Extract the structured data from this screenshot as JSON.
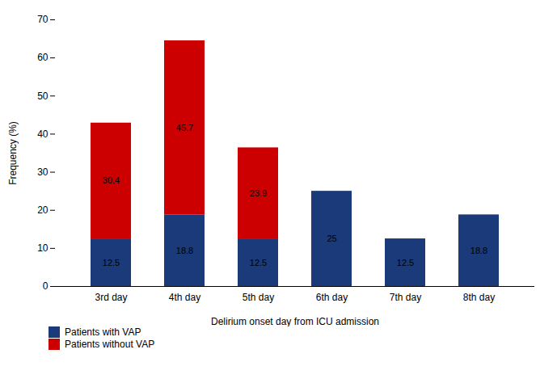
{
  "chart_data": {
    "type": "bar",
    "stacked": true,
    "categories": [
      "3rd day",
      "4th day",
      "5th day",
      "6th day",
      "7th day",
      "8th day"
    ],
    "series": [
      {
        "name": "Patients with VAP",
        "color": "#1a3a7a",
        "values": [
          12.5,
          18.8,
          12.5,
          25.0,
          12.5,
          18.8
        ],
        "value_labels": [
          "12.5",
          "18.8",
          "12.5",
          "25",
          "12.5",
          "18.8"
        ]
      },
      {
        "name": "Patients without VAP",
        "color": "#cc0000",
        "values": [
          30.4,
          45.7,
          23.9,
          0.0,
          0.0,
          0.0
        ],
        "value_labels": [
          "30.4",
          "45.7",
          "23.9",
          null,
          null,
          null
        ]
      }
    ],
    "xlabel": "Delirium onset day from ICU admission",
    "ylabel": "Frequency (%)",
    "ylim": [
      0,
      70
    ],
    "yticks": [
      0,
      10,
      20,
      30,
      40,
      50,
      60,
      70
    ],
    "grid": false,
    "legend": "bottom",
    "data_labels": true
  }
}
